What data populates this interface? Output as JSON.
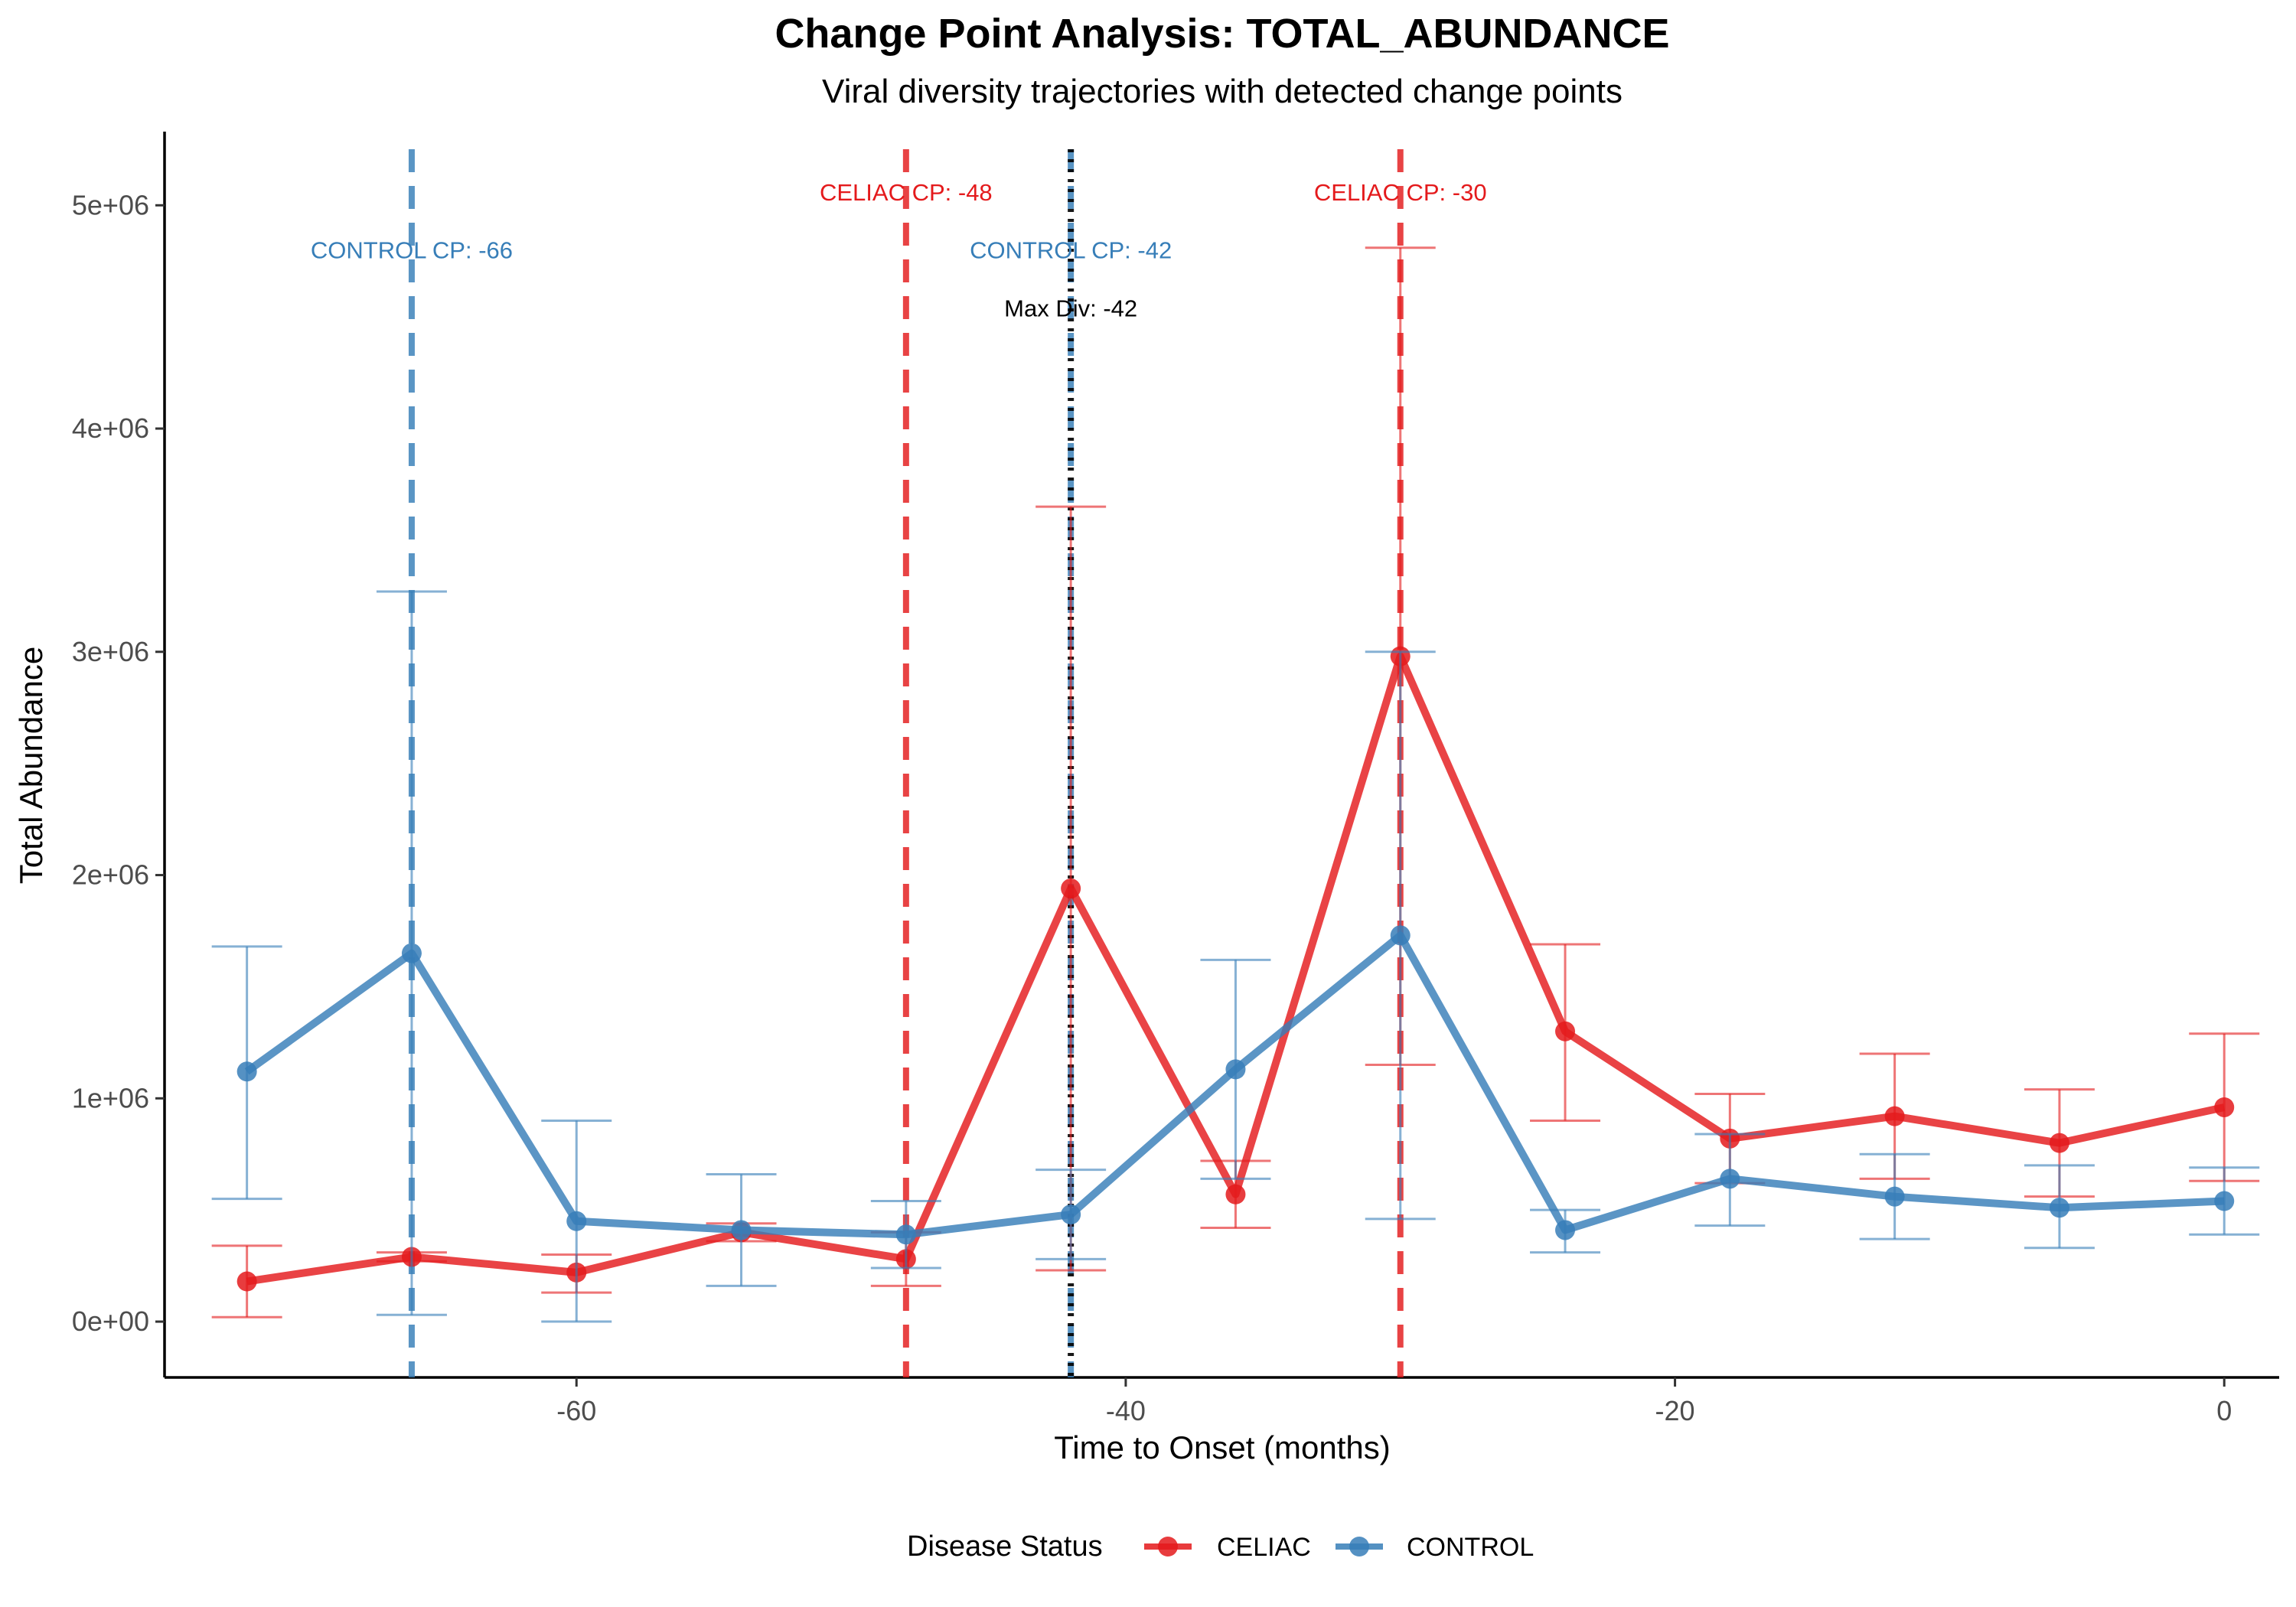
{
  "chart_data": {
    "type": "line",
    "title": "Change Point Analysis: TOTAL_ABUNDANCE",
    "subtitle": "Viral diversity trajectories with detected change points",
    "xlabel": "Time to Onset (months)",
    "ylabel": "Total Abundance",
    "xlim": [
      -75,
      2
    ],
    "ylim": [
      -250000,
      5330000
    ],
    "x_ticks": [
      -60,
      -40,
      -20,
      0
    ],
    "x_tick_labels": [
      "-60",
      "-40",
      "-20",
      "0"
    ],
    "y_ticks": [
      0,
      1000000,
      2000000,
      3000000,
      4000000,
      5000000
    ],
    "y_tick_labels": [
      "0e+00",
      "1e+06",
      "2e+06",
      "3e+06",
      "4e+06",
      "5e+06"
    ],
    "grid": false,
    "legend": {
      "title": "Disease Status",
      "position": "bottom",
      "entries": [
        "CELIAC",
        "CONTROL"
      ]
    },
    "series": [
      {
        "name": "CELIAC",
        "color": "#e41a1c",
        "x": [
          -72,
          -66,
          -60,
          -54,
          -48,
          -42,
          -36,
          -30,
          -24,
          -18,
          -12,
          -6,
          0
        ],
        "y": [
          180000,
          290000,
          220000,
          400000,
          280000,
          1940000,
          570000,
          2980000,
          1300000,
          820000,
          920000,
          800000,
          960000
        ],
        "err_low": [
          20000,
          270000,
          130000,
          360000,
          160000,
          230000,
          420000,
          1150000,
          900000,
          620000,
          640000,
          560000,
          630000
        ],
        "err_high": [
          340000,
          310000,
          300000,
          440000,
          400000,
          3650000,
          720000,
          4810000,
          1690000,
          1020000,
          1200000,
          1040000,
          1290000
        ]
      },
      {
        "name": "CONTROL",
        "color": "#377eb8",
        "x": [
          -72,
          -66,
          -60,
          -54,
          -48,
          -42,
          -36,
          -30,
          -24,
          -18,
          -12,
          -6,
          0
        ],
        "y": [
          1120000,
          1650000,
          450000,
          410000,
          390000,
          480000,
          1130000,
          1730000,
          410000,
          640000,
          560000,
          510000,
          540000
        ],
        "err_low": [
          550000,
          30000,
          0,
          160000,
          240000,
          280000,
          640000,
          460000,
          310000,
          430000,
          370000,
          330000,
          390000
        ],
        "err_high": [
          1680000,
          3270000,
          900000,
          660000,
          540000,
          680000,
          1620000,
          3000000,
          500000,
          840000,
          750000,
          700000,
          690000
        ]
      }
    ],
    "change_points": [
      {
        "x": -66,
        "group": "CONTROL",
        "label": "CONTROL CP: -66",
        "color": "#377eb8",
        "label_y": 4800000
      },
      {
        "x": -48,
        "group": "CELIAC",
        "label": "CELIAC CP: -48",
        "color": "#e41a1c",
        "label_y": 5060000
      },
      {
        "x": -42,
        "group": "CONTROL",
        "label": "CONTROL CP: -42",
        "color": "#377eb8",
        "label_y": 4800000
      },
      {
        "x": -30,
        "group": "CELIAC",
        "label": "CELIAC CP: -30",
        "color": "#e41a1c",
        "label_y": 5060000
      },
      {
        "x": -42,
        "group": "MAX",
        "label": "Max Div: -42",
        "color": "#000000",
        "label_y": 4540000
      }
    ]
  }
}
